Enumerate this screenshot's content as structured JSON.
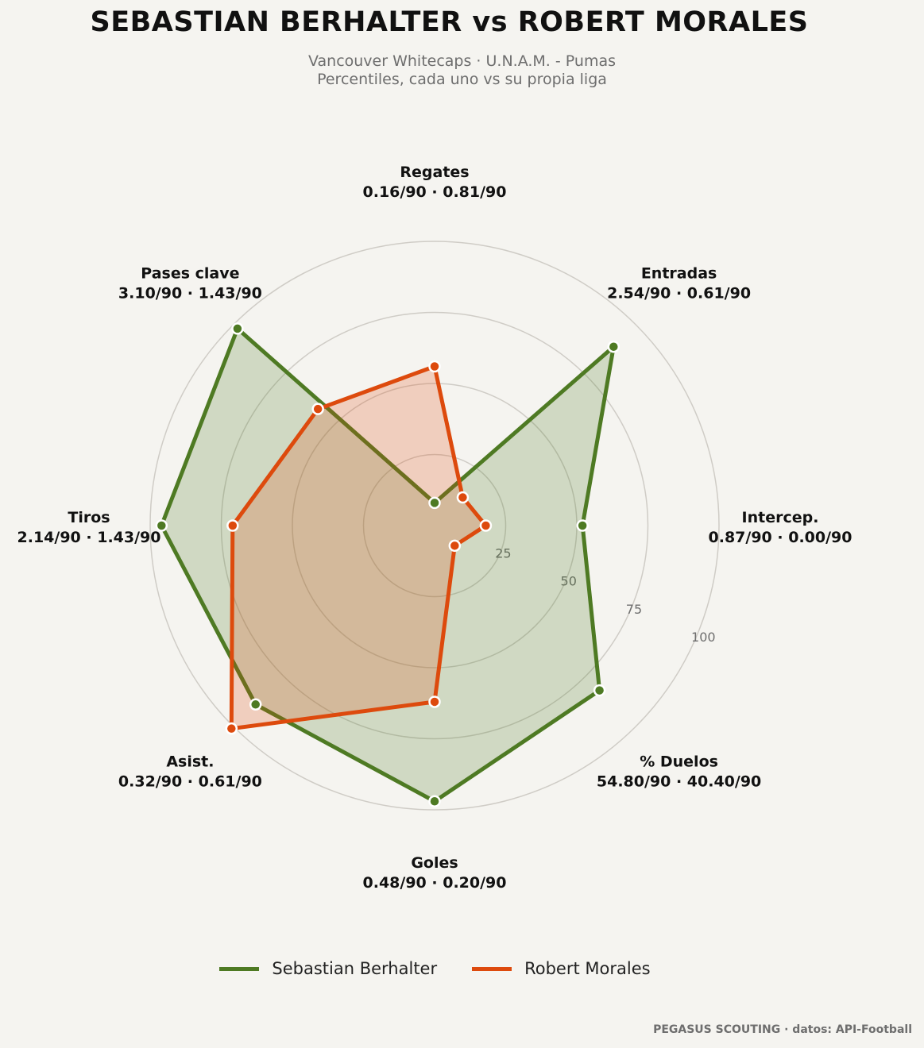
{
  "header": {
    "title": "SEBASTIAN BERHALTER  vs  ROBERT MORALES",
    "subtitle_line1": "Vancouver Whitecaps · U.N.A.M. - Pumas",
    "subtitle_line2": "Percentiles, cada uno vs su propia liga"
  },
  "chart_data": {
    "type": "radar",
    "scale": {
      "min": 0,
      "max": 100,
      "ticks": [
        25,
        50,
        75,
        100
      ]
    },
    "grid": true,
    "legend_position": "bottom",
    "axes": [
      {
        "label": "Regates",
        "values_text": "0.16/90 · 0.81/90"
      },
      {
        "label": "Entradas",
        "values_text": "2.54/90 · 0.61/90"
      },
      {
        "label": "Intercep.",
        "values_text": "0.87/90 · 0.00/90"
      },
      {
        "label": "% Duelos",
        "values_text": "54.80/90 · 40.40/90"
      },
      {
        "label": "Goles",
        "values_text": "0.48/90 · 0.20/90"
      },
      {
        "label": "Asist.",
        "values_text": "0.32/90 · 0.61/90"
      },
      {
        "label": "Tiros",
        "values_text": "2.14/90 · 1.43/90"
      },
      {
        "label": "Pases clave",
        "values_text": "3.10/90 · 1.43/90"
      }
    ],
    "series": [
      {
        "name": "Sebastian Berhalter",
        "color": "#4e7a23",
        "fill": "rgba(78,122,35,0.22)",
        "values": [
          8,
          89,
          52,
          82,
          97,
          89,
          96,
          98
        ]
      },
      {
        "name": "Robert Morales",
        "color": "#dd4a0d",
        "fill": "rgba(221,74,13,0.22)",
        "values": [
          56,
          14,
          18,
          10,
          62,
          101,
          71,
          58
        ]
      }
    ]
  },
  "footer": {
    "credit": "PEGASUS SCOUTING · datos: API-Football"
  }
}
